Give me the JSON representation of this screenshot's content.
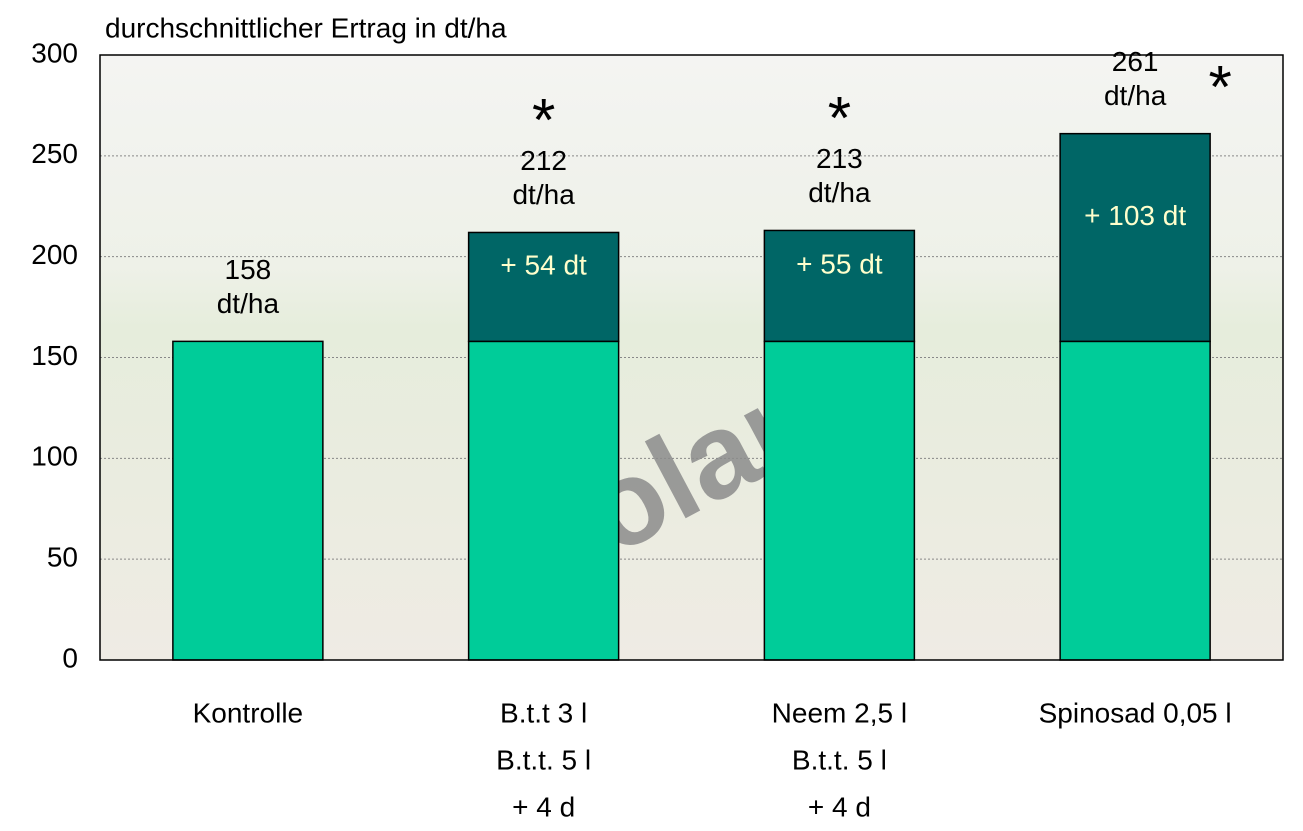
{
  "chart_data": {
    "type": "stacked-bar",
    "y_axis_title": "durchschnittlicher Ertrag in dt/ha",
    "categories": [
      [
        "Kontrolle"
      ],
      [
        "B.t.t  3 l",
        "B.t.t. 5 l",
        "+ 4 d"
      ],
      [
        "Neem 2,5 l",
        "B.t.t. 5 l",
        "+ 4 d"
      ],
      [
        "Spinosad 0,05 l"
      ]
    ],
    "series": [
      {
        "color": "#00cc99",
        "values": [
          158,
          158,
          158,
          158
        ]
      },
      {
        "color": "#006666",
        "values": [
          null,
          54,
          55,
          103
        ],
        "value_labels": [
          null,
          "+ 54 dt",
          "+ 55 dt",
          "+ 103 dt"
        ]
      }
    ],
    "totals": [
      158,
      212,
      213,
      261
    ],
    "total_unit": "dt/ha",
    "significance": [
      null,
      "*",
      "*",
      "*"
    ],
    "watermark": "Solara",
    "ylim": [
      0,
      300
    ],
    "yticks": [
      0,
      50,
      100,
      150,
      200,
      250,
      300
    ],
    "grid": true
  }
}
